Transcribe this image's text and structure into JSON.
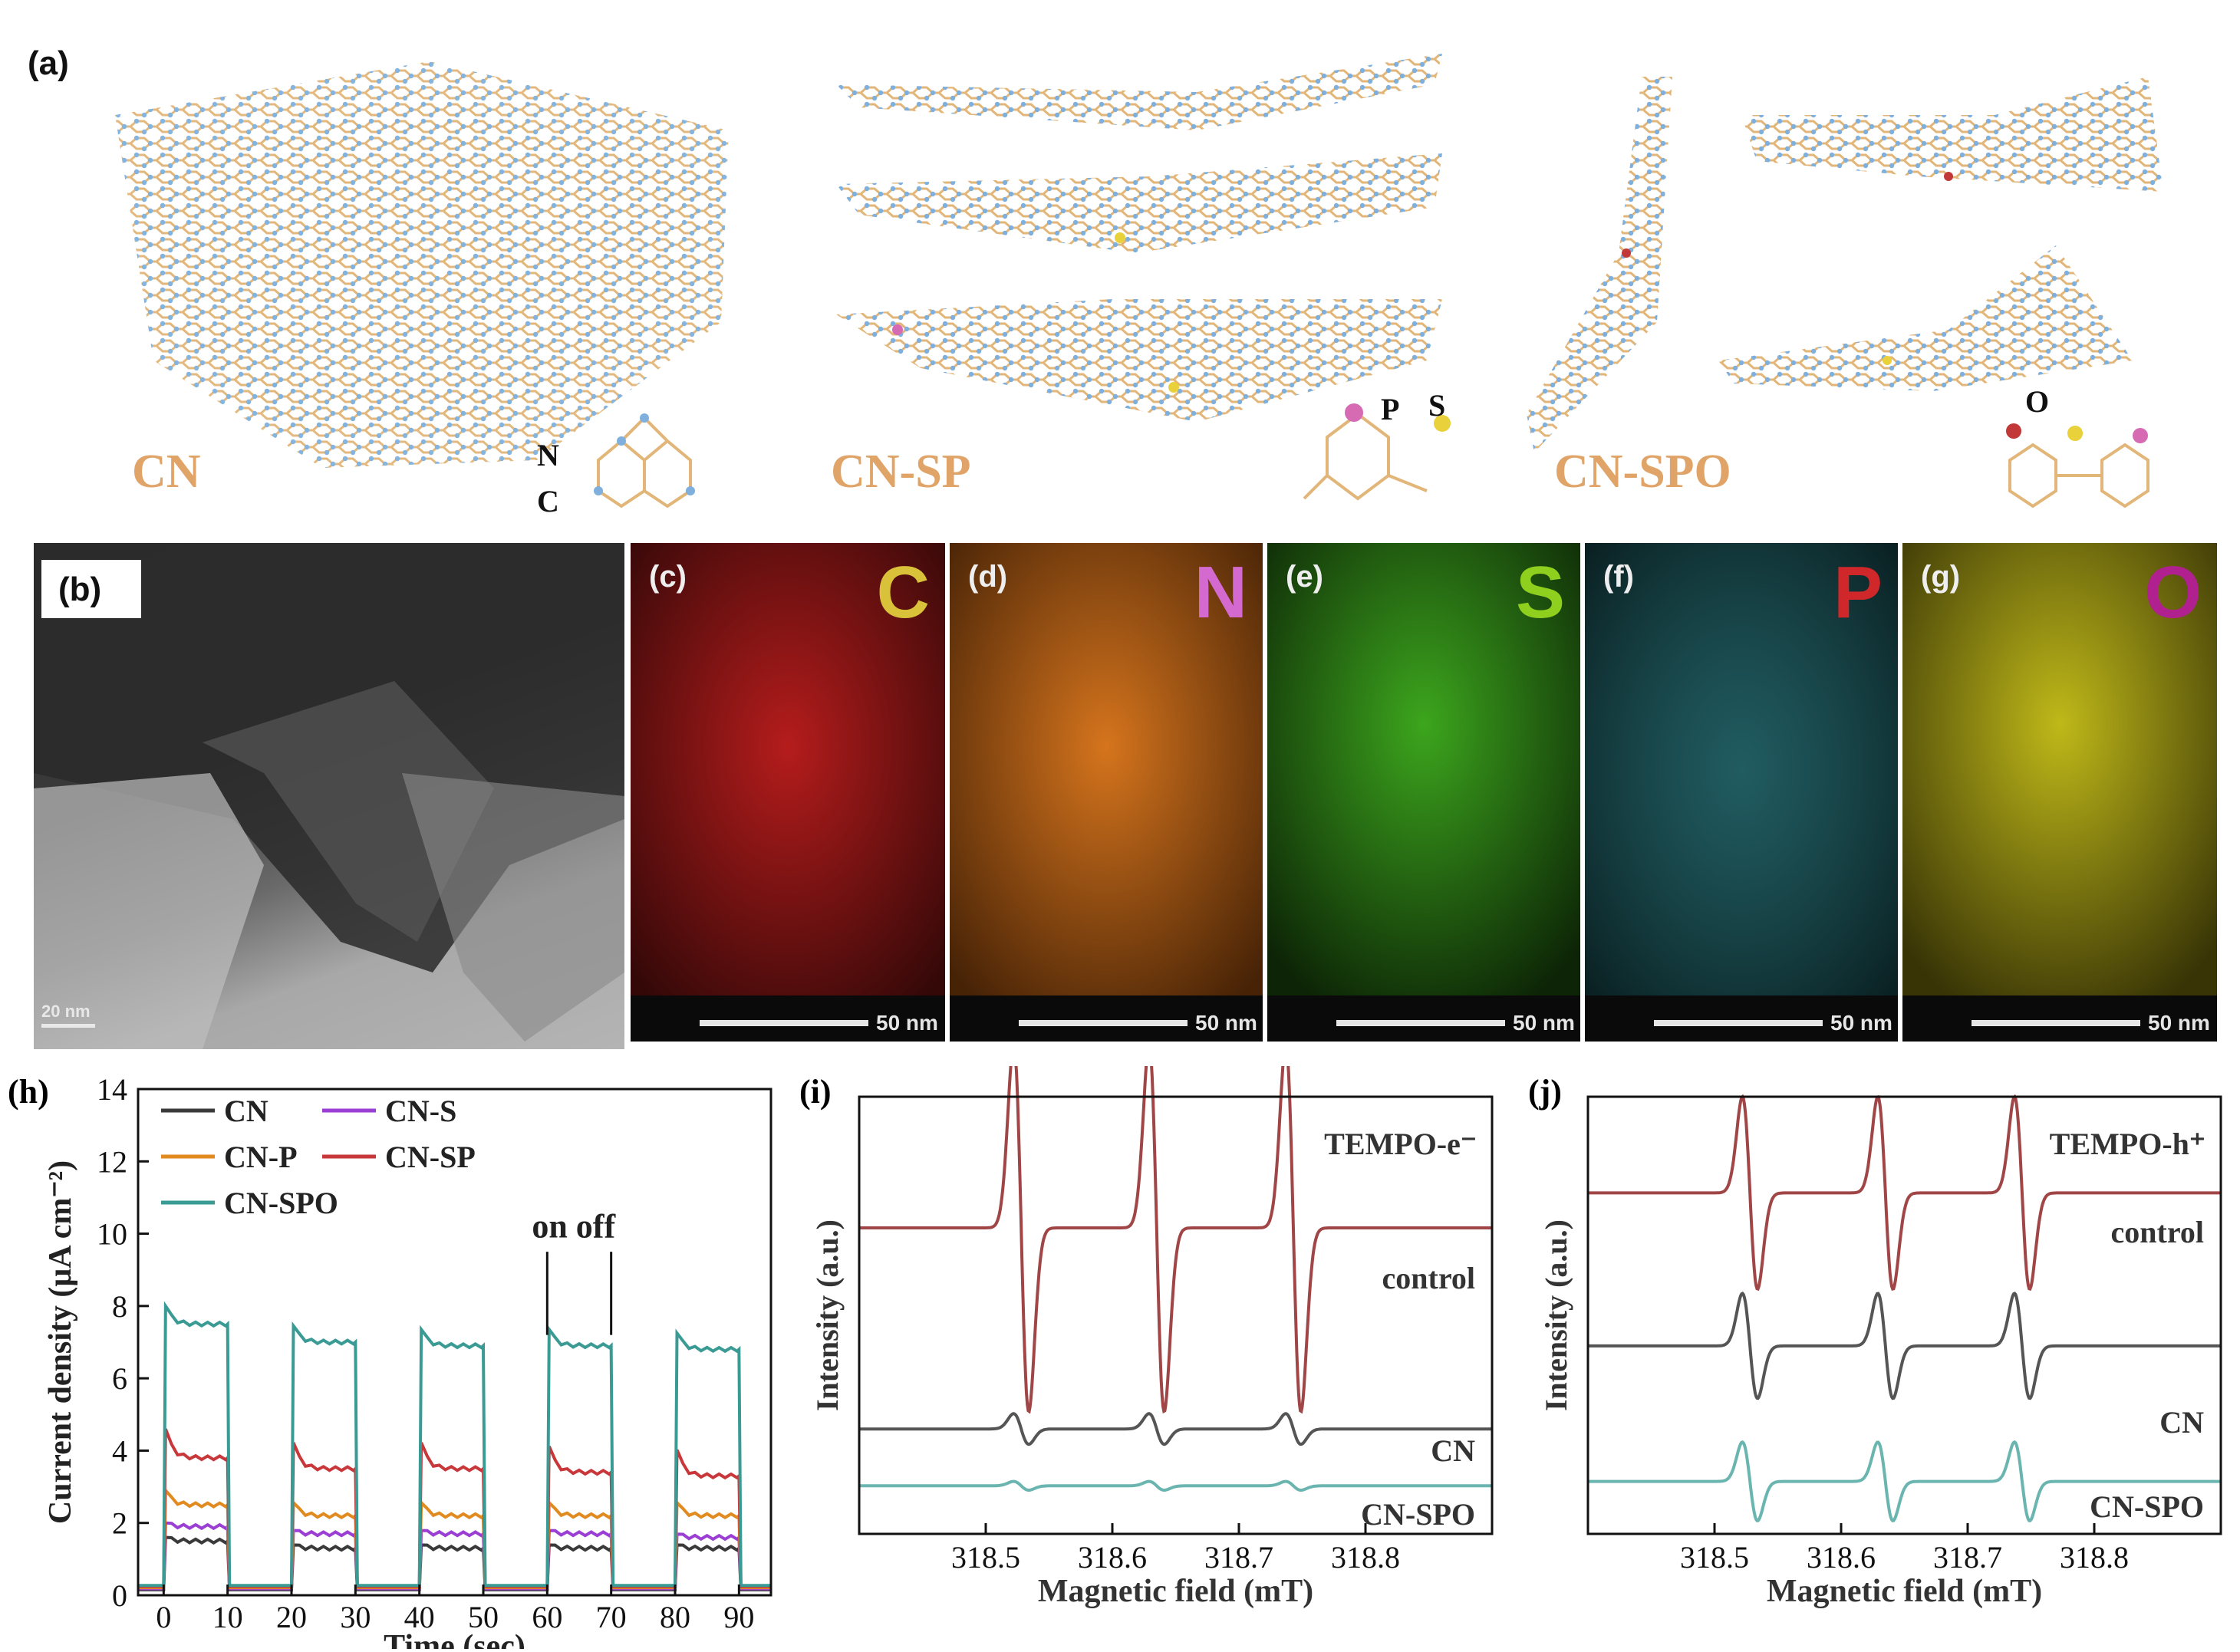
{
  "panel_a": {
    "letter": "(a)",
    "structures": [
      {
        "label": "CN",
        "atoms": [
          "N",
          "C"
        ]
      },
      {
        "label": "CN-SP",
        "atoms": [
          "P",
          "S"
        ]
      },
      {
        "label": "CN-SPO",
        "atoms": [
          "O"
        ]
      }
    ]
  },
  "panel_b": {
    "letter": "(b)",
    "scale": "20 nm"
  },
  "maps": [
    {
      "letter": "(c)",
      "element": "C",
      "element_color": "#d9c23a",
      "map_color": "#c81e1e",
      "scale": "50 nm"
    },
    {
      "letter": "(d)",
      "element": "N",
      "element_color": "#d46ad0",
      "map_color": "#e07a1e",
      "scale": "50 nm"
    },
    {
      "letter": "(e)",
      "element": "S",
      "element_color": "#8fd01e",
      "map_color": "#3fae1e",
      "scale": "50 nm"
    },
    {
      "letter": "(f)",
      "element": "P",
      "element_color": "#d0282a",
      "map_color": "#2a7f86",
      "scale": "50 nm"
    },
    {
      "letter": "(g)",
      "element": "O",
      "element_color": "#b0208e",
      "map_color": "#c9c21a",
      "scale": "50 nm"
    }
  ],
  "chart_data": [
    {
      "panel": "(h)",
      "type": "line",
      "xlabel": "Time (sec)",
      "ylabel": "Current density (μA cm⁻²)",
      "xlim": [
        -4,
        95
      ],
      "ylim": [
        0,
        14
      ],
      "xticks": [
        0,
        10,
        20,
        30,
        40,
        50,
        60,
        70,
        80,
        90
      ],
      "yticks": [
        0,
        2,
        4,
        6,
        8,
        10,
        12,
        14
      ],
      "light_on_intervals": [
        [
          0,
          10
        ],
        [
          20,
          30
        ],
        [
          40,
          50
        ],
        [
          60,
          70
        ],
        [
          80,
          90
        ]
      ],
      "annotation": "on off",
      "legend": "top-left",
      "series": [
        {
          "name": "CN",
          "color": "#3a3a3a",
          "spike": 1.6,
          "plateau": [
            1.5,
            1.3,
            1.3,
            1.3,
            1.3
          ]
        },
        {
          "name": "CN-S",
          "color": "#9b3fd4",
          "spike": 2.0,
          "plateau": [
            1.9,
            1.7,
            1.7,
            1.7,
            1.6
          ]
        },
        {
          "name": "CN-P",
          "color": "#e08a20",
          "spike": 2.9,
          "plateau": [
            2.5,
            2.2,
            2.2,
            2.2,
            2.2
          ]
        },
        {
          "name": "CN-SP",
          "color": "#c8373a",
          "spike": 4.6,
          "plateau": [
            3.8,
            3.5,
            3.5,
            3.4,
            3.3
          ]
        },
        {
          "name": "CN-SPO",
          "color": "#3a9a94",
          "spike": 8.0,
          "plateau": [
            7.5,
            7.0,
            6.9,
            6.9,
            6.8
          ]
        }
      ]
    },
    {
      "panel": "(i)",
      "type": "line",
      "xlabel": "Magnetic field (mT)",
      "ylabel": "Intensity (a.u.)",
      "xlim": [
        318.4,
        318.9
      ],
      "xticks": [
        318.5,
        318.6,
        318.7,
        318.8
      ],
      "peak_centers": [
        318.528,
        318.635,
        318.743
      ],
      "title": "TEMPO-e⁻",
      "series": [
        {
          "name": "control",
          "color": "#a04646",
          "baseline": 0.7,
          "amplitude": 0.42
        },
        {
          "name": "CN",
          "color": "#555555",
          "baseline": 0.24,
          "amplitude": 0.035
        },
        {
          "name": "CN-SPO",
          "color": "#6ab5b0",
          "baseline": 0.11,
          "amplitude": 0.01
        }
      ]
    },
    {
      "panel": "(j)",
      "type": "line",
      "xlabel": "Magnetic field (mT)",
      "ylabel": "Intensity (a.u.)",
      "xlim": [
        318.4,
        318.9
      ],
      "xticks": [
        318.5,
        318.6,
        318.7,
        318.8
      ],
      "peak_centers": [
        318.528,
        318.635,
        318.743
      ],
      "title": "TEMPO-h⁺",
      "series": [
        {
          "name": "control",
          "color": "#a04646",
          "baseline": 0.78,
          "amplitude": 0.22
        },
        {
          "name": "CN",
          "color": "#555555",
          "baseline": 0.43,
          "amplitude": 0.12
        },
        {
          "name": "CN-SPO",
          "color": "#6ab5b0",
          "baseline": 0.12,
          "amplitude": 0.09
        }
      ]
    }
  ]
}
